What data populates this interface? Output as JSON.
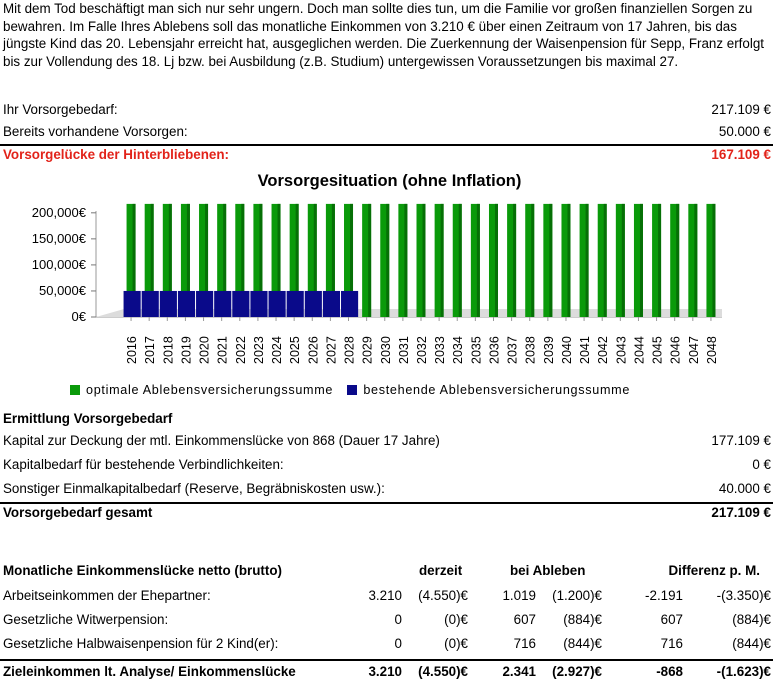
{
  "intro": "Mit dem Tod beschäftigt man sich nur sehr ungern. Doch man sollte dies tun, um die Familie vor großen finanziellen Sorgen zu bewahren. Im Falle Ihres Ablebens soll das monatliche Einkommen von 3.210 € über einen Zeitraum von 17 Jahren, bis das jüngste Kind das 20. Lebensjahr erreicht hat, ausgeglichen werden. Die Zuerkennung der Waisenpension für  Sepp, Franz erfolgt bis zur Vollendung des 18. Lj bzw. bei Ausbildung (z.B. Studium) untergewissen Voraussetzungen bis maximal 27.",
  "summary": {
    "need_label": "Ihr Vorsorgebedarf:",
    "need_value": "217.109 €",
    "existing_label": "Bereits vorhandene Vorsorgen:",
    "existing_value": "50.000 €",
    "gap_label": "Vorsorgelücke der Hinterbliebenen:",
    "gap_value": "167.109 €"
  },
  "chart_data": {
    "type": "bar",
    "title": "Vorsorgesituation (ohne Inflation)",
    "categories": [
      "2016",
      "2017",
      "2018",
      "2019",
      "2020",
      "2021",
      "2022",
      "2023",
      "2024",
      "2025",
      "2026",
      "2027",
      "2028",
      "2029",
      "2030",
      "2031",
      "2032",
      "2033",
      "2034",
      "2035",
      "2036",
      "2037",
      "2038",
      "2039",
      "2040",
      "2041",
      "2042",
      "2043",
      "2044",
      "2045",
      "2046",
      "2047",
      "2048"
    ],
    "yticks": [
      "0€",
      "50,000€",
      "100,000€",
      "150,000€",
      "200,000€"
    ],
    "ylim": [
      0,
      215000
    ],
    "grid": false,
    "legend_position": "bottom",
    "series": [
      {
        "name": "optimale Ablebensversicherungssumme",
        "color": "#0a9a0a",
        "values": [
          217109,
          217109,
          217109,
          217109,
          217109,
          217109,
          217109,
          217109,
          217109,
          217109,
          217109,
          217109,
          217109,
          217109,
          217109,
          217109,
          217109,
          217109,
          217109,
          217109,
          217109,
          217109,
          217109,
          217109,
          217109,
          217109,
          217109,
          217109,
          217109,
          217109,
          217109,
          217109,
          217109
        ]
      },
      {
        "name": "bestehende Ablebensversicherungssumme",
        "color": "#0a0a8a",
        "values": [
          50000,
          50000,
          50000,
          50000,
          50000,
          50000,
          50000,
          50000,
          50000,
          50000,
          50000,
          50000,
          50000,
          0,
          0,
          0,
          0,
          0,
          0,
          0,
          0,
          0,
          0,
          0,
          0,
          0,
          0,
          0,
          0,
          0,
          0,
          0,
          0
        ]
      }
    ]
  },
  "need": {
    "heading": "Ermittlung Vorsorgebedarf",
    "rows": [
      {
        "label": "Kapital zur Deckung der mtl. Einkommenslücke von 868 (Dauer  17 Jahre)",
        "value": "177.109 €"
      },
      {
        "label": "Kapitalbedarf für bestehende Verbindlichkeiten:",
        "value": "0 €"
      },
      {
        "label": "Sonstiger Einmalkapitalbedarf (Reserve, Begräbniskosten usw.):",
        "value": "40.000 €"
      }
    ],
    "total_label": "Vorsorgebedarf gesamt",
    "total_value": "217.109 €"
  },
  "income": {
    "headers": {
      "label": "Monatliche Einkommenslücke netto (brutto)",
      "now": "derzeit",
      "death": "bei Ableben",
      "diff": "Differenz p. M."
    },
    "rows": [
      {
        "label": "Arbeitseinkommen der Ehepartner:",
        "now_net": "3.210",
        "now_gross": "(4.550)€",
        "death_net": "1.019",
        "death_gross": "(1.200)€",
        "diff_net": "-2.191",
        "diff_gross": "-(3.350)€"
      },
      {
        "label": "Gesetzliche Witwerpension:",
        "now_net": "0",
        "now_gross": "(0)€",
        "death_net": "607",
        "death_gross": "(884)€",
        "diff_net": "607",
        "diff_gross": "(884)€"
      },
      {
        "label": "Gesetzliche Halbwaisenpension für 2 Kind(er):",
        "now_net": "0",
        "now_gross": "(0)€",
        "death_net": "716",
        "death_gross": "(844)€",
        "diff_net": "716",
        "diff_gross": "(844)€"
      }
    ],
    "total": {
      "label": "Zieleinkommen lt. Analyse/ Einkommenslücke",
      "now_net": "3.210",
      "now_gross": "(4.550)€",
      "death_net": "2.341",
      "death_gross": "(2.927)€",
      "diff_net": "-868",
      "diff_gross": "-(1.623)€"
    }
  }
}
